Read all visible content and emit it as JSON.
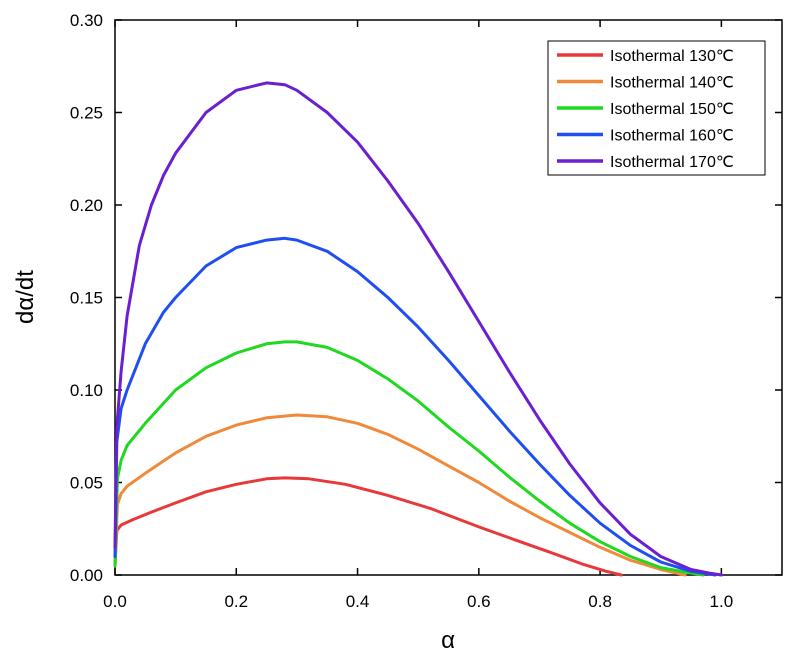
{
  "chart_data": {
    "type": "line",
    "xlabel": "α",
    "ylabel": "dα/dt",
    "xlim": [
      0.0,
      1.1
    ],
    "ylim": [
      0.0,
      0.3
    ],
    "x_ticks": [
      "0.0",
      "0.2",
      "0.4",
      "0.6",
      "0.8",
      "1.0"
    ],
    "y_ticks": [
      "0.00",
      "0.05",
      "0.10",
      "0.15",
      "0.20",
      "0.25",
      "0.30"
    ],
    "grid": false,
    "legend_position": "top-right",
    "series": [
      {
        "name": "Isothermal 130℃",
        "color": "#e8393a",
        "x": [
          0.0,
          0.003,
          0.01,
          0.03,
          0.06,
          0.1,
          0.15,
          0.2,
          0.25,
          0.28,
          0.32,
          0.38,
          0.45,
          0.52,
          0.6,
          0.66,
          0.72,
          0.77,
          0.81,
          0.835
        ],
        "y": [
          0.005,
          0.024,
          0.027,
          0.03,
          0.034,
          0.039,
          0.045,
          0.049,
          0.052,
          0.0525,
          0.052,
          0.049,
          0.043,
          0.036,
          0.026,
          0.019,
          0.012,
          0.006,
          0.002,
          0.0
        ]
      },
      {
        "name": "Isothermal 140℃",
        "color": "#f08a3a",
        "x": [
          0.0,
          0.004,
          0.01,
          0.02,
          0.05,
          0.1,
          0.15,
          0.2,
          0.25,
          0.3,
          0.35,
          0.4,
          0.45,
          0.5,
          0.55,
          0.6,
          0.65,
          0.7,
          0.75,
          0.8,
          0.85,
          0.9,
          0.94
        ],
        "y": [
          0.005,
          0.038,
          0.044,
          0.048,
          0.055,
          0.066,
          0.075,
          0.081,
          0.085,
          0.0865,
          0.0855,
          0.082,
          0.076,
          0.068,
          0.059,
          0.05,
          0.04,
          0.031,
          0.023,
          0.015,
          0.008,
          0.003,
          0.0
        ]
      },
      {
        "name": "Isothermal 150℃",
        "color": "#1fd81f",
        "x": [
          0.0,
          0.004,
          0.01,
          0.02,
          0.05,
          0.1,
          0.15,
          0.2,
          0.25,
          0.28,
          0.3,
          0.35,
          0.4,
          0.45,
          0.5,
          0.55,
          0.6,
          0.65,
          0.7,
          0.75,
          0.8,
          0.85,
          0.9,
          0.95,
          0.97
        ],
        "y": [
          0.005,
          0.052,
          0.062,
          0.07,
          0.082,
          0.1,
          0.112,
          0.12,
          0.125,
          0.126,
          0.126,
          0.123,
          0.116,
          0.106,
          0.094,
          0.08,
          0.067,
          0.053,
          0.04,
          0.028,
          0.018,
          0.01,
          0.004,
          0.001,
          0.0
        ]
      },
      {
        "name": "Isothermal 160℃",
        "color": "#1f4ff0",
        "x": [
          0.0,
          0.003,
          0.01,
          0.02,
          0.05,
          0.08,
          0.1,
          0.15,
          0.2,
          0.25,
          0.28,
          0.3,
          0.35,
          0.4,
          0.45,
          0.5,
          0.55,
          0.6,
          0.65,
          0.7,
          0.75,
          0.8,
          0.85,
          0.9,
          0.95,
          0.99
        ],
        "y": [
          0.01,
          0.072,
          0.09,
          0.1,
          0.125,
          0.142,
          0.15,
          0.167,
          0.177,
          0.181,
          0.182,
          0.181,
          0.175,
          0.164,
          0.15,
          0.134,
          0.116,
          0.097,
          0.078,
          0.06,
          0.043,
          0.028,
          0.016,
          0.007,
          0.002,
          0.0
        ]
      },
      {
        "name": "Isothermal 170℃",
        "color": "#6a1fd0",
        "x": [
          0.0,
          0.003,
          0.01,
          0.02,
          0.04,
          0.06,
          0.08,
          0.1,
          0.15,
          0.2,
          0.25,
          0.28,
          0.3,
          0.35,
          0.4,
          0.45,
          0.5,
          0.55,
          0.6,
          0.65,
          0.7,
          0.75,
          0.8,
          0.85,
          0.9,
          0.95,
          0.98,
          1.0
        ],
        "y": [
          0.015,
          0.08,
          0.11,
          0.14,
          0.178,
          0.2,
          0.216,
          0.228,
          0.25,
          0.262,
          0.266,
          0.265,
          0.262,
          0.25,
          0.234,
          0.213,
          0.19,
          0.164,
          0.137,
          0.11,
          0.084,
          0.06,
          0.039,
          0.022,
          0.01,
          0.003,
          0.001,
          0.0
        ]
      }
    ]
  }
}
